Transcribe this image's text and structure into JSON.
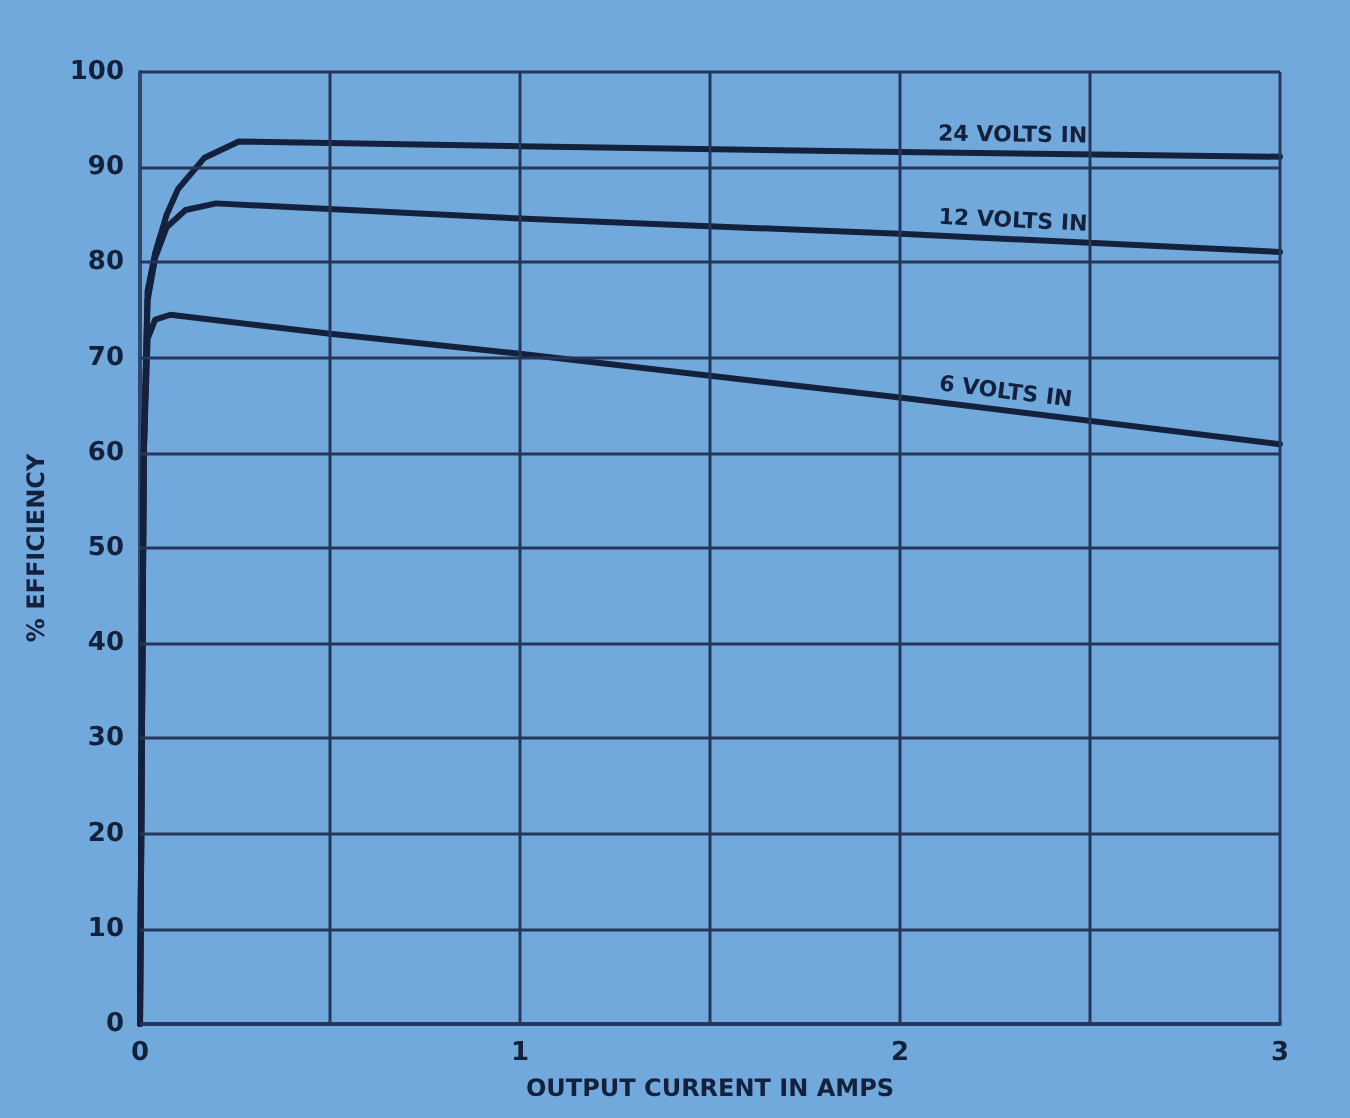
{
  "chart_data": {
    "type": "line",
    "xlabel": "OUTPUT CURRENT IN AMPS",
    "ylabel": "% EFFICIENCY",
    "xlim": [
      0,
      3
    ],
    "xticks": [
      0,
      {
        "value": 0.5,
        "label": null
      },
      1,
      {
        "value": 1.5,
        "label": null
      },
      2,
      {
        "value": 2.5,
        "label": null
      },
      3
    ],
    "ylim": [
      0,
      100
    ],
    "yticks": [
      0,
      10,
      20,
      30,
      40,
      50,
      60,
      70,
      80,
      90,
      100
    ],
    "grid": true,
    "series": [
      {
        "name": "24 VOLTS IN",
        "color": "#14213d",
        "x": [
          0,
          0.01,
          0.02,
          0.04,
          0.07,
          0.1,
          0.17,
          0.26,
          1,
          2,
          3
        ],
        "values": [
          0,
          60,
          77,
          81,
          85,
          87.7,
          91,
          92.7,
          92.2,
          91.6,
          91.1
        ]
      },
      {
        "name": "12 VOLTS IN",
        "color": "#14213d",
        "x": [
          0,
          0.01,
          0.02,
          0.04,
          0.07,
          0.12,
          0.2,
          1,
          2,
          3
        ],
        "values": [
          0,
          60,
          76,
          80.5,
          83.7,
          85.5,
          86.2,
          84.6,
          83,
          81.1
        ]
      },
      {
        "name": "6 VOLTS IN",
        "color": "#14213d",
        "x": [
          0,
          0.01,
          0.02,
          0.04,
          0.08,
          0.5,
          1,
          2,
          3
        ],
        "values": [
          0,
          60,
          72,
          74,
          74.5,
          72.5,
          70.4,
          65.8,
          60.9
        ]
      }
    ]
  }
}
